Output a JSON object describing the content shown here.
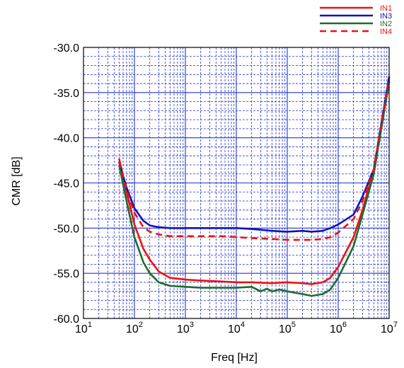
{
  "chart_data": {
    "type": "line",
    "xlabel": "Freq [Hz]",
    "ylabel": "CMR [dB]",
    "xscale": "log",
    "xlim": [
      10,
      10000000
    ],
    "ylim": [
      -60,
      -30
    ],
    "grid": true,
    "legend_position": "top-right",
    "x_ticks": [
      {
        "base": "10",
        "exp": "1"
      },
      {
        "base": "10",
        "exp": "2"
      },
      {
        "base": "10",
        "exp": "3"
      },
      {
        "base": "10",
        "exp": "4"
      },
      {
        "base": "10",
        "exp": "5"
      },
      {
        "base": "10",
        "exp": "6"
      },
      {
        "base": "10",
        "exp": "7"
      }
    ],
    "y_ticks": [
      "-30.0",
      "-35.0",
      "-40.0",
      "-45.0",
      "-50.0",
      "-55.0",
      "-60.0"
    ],
    "series": [
      {
        "name": "IN1",
        "color": "#ee1111",
        "style": "solid",
        "x": [
          50,
          70,
          100,
          150,
          200,
          300,
          500,
          1000,
          2000,
          5000,
          10000,
          20000,
          50000,
          100000,
          200000,
          300000,
          500000,
          700000,
          1000000,
          2000000,
          3000000,
          5000000,
          10000000
        ],
        "y": [
          -42.3,
          -46.0,
          -49.6,
          -52.3,
          -53.5,
          -54.8,
          -55.5,
          -55.7,
          -55.8,
          -55.9,
          -56.0,
          -56.0,
          -56.1,
          -56.0,
          -56.1,
          -56.2,
          -56.0,
          -55.5,
          -54.3,
          -51.0,
          -48.0,
          -43.5,
          -33.5
        ]
      },
      {
        "name": "IN3",
        "color": "#1111bb",
        "style": "solid",
        "x": [
          50,
          70,
          100,
          150,
          200,
          300,
          500,
          1000,
          2000,
          5000,
          10000,
          20000,
          50000,
          100000,
          200000,
          300000,
          500000,
          700000,
          1000000,
          2000000,
          3000000,
          5000000,
          10000000
        ],
        "y": [
          -42.7,
          -45.5,
          -47.8,
          -49.2,
          -49.7,
          -49.9,
          -50.0,
          -50.0,
          -50.0,
          -50.0,
          -50.0,
          -50.1,
          -50.3,
          -50.4,
          -50.3,
          -50.4,
          -50.3,
          -50.0,
          -49.6,
          -48.5,
          -46.5,
          -43.5,
          -33.2
        ]
      },
      {
        "name": "IN2",
        "color": "#1e6b2e",
        "style": "solid",
        "x": [
          50,
          70,
          100,
          150,
          200,
          300,
          500,
          1000,
          2000,
          5000,
          10000,
          20000,
          30000,
          40000,
          50000,
          70000,
          100000,
          200000,
          300000,
          500000,
          700000,
          1000000,
          2000000,
          3000000,
          5000000,
          10000000
        ],
        "y": [
          -43.0,
          -47.0,
          -51.0,
          -53.8,
          -55.0,
          -56.0,
          -56.4,
          -56.5,
          -56.6,
          -56.6,
          -56.6,
          -56.5,
          -57.0,
          -56.7,
          -57.0,
          -56.8,
          -57.0,
          -57.3,
          -57.5,
          -57.3,
          -56.8,
          -55.5,
          -52.0,
          -48.5,
          -44.0,
          -33.8
        ]
      },
      {
        "name": "IN4",
        "color": "#ee1111",
        "style": "dashed",
        "x": [
          50,
          70,
          100,
          150,
          200,
          300,
          500,
          1000,
          2000,
          5000,
          10000,
          20000,
          50000,
          100000,
          200000,
          300000,
          500000,
          700000,
          1000000,
          2000000,
          3000000,
          5000000,
          10000000
        ],
        "y": [
          -42.6,
          -45.8,
          -48.3,
          -49.9,
          -50.4,
          -50.7,
          -50.9,
          -50.9,
          -50.9,
          -50.9,
          -51.0,
          -51.1,
          -51.2,
          -51.3,
          -51.3,
          -51.3,
          -51.2,
          -51.0,
          -50.5,
          -49.0,
          -47.0,
          -43.5,
          -33.3
        ]
      }
    ]
  }
}
